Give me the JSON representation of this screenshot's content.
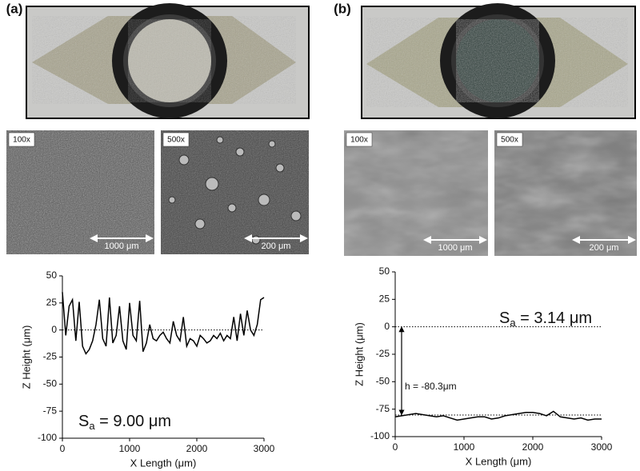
{
  "panels": [
    {
      "label": "(a)",
      "magnifications": [
        "100x",
        "500x"
      ],
      "scalebars": [
        "1000 μm",
        "200 μm"
      ]
    },
    {
      "label": "(b)",
      "magnifications": [
        "100x",
        "500x"
      ],
      "scalebars": [
        "1000 μm",
        "200 μm"
      ]
    }
  ],
  "chart_data": [
    {
      "type": "line",
      "xlabel": "X Length (μm)",
      "ylabel": "Z Height (μm)",
      "x": [
        0,
        50,
        100,
        150,
        200,
        250,
        300,
        350,
        400,
        450,
        500,
        550,
        600,
        650,
        700,
        750,
        800,
        850,
        900,
        950,
        1000,
        1050,
        1100,
        1150,
        1200,
        1250,
        1300,
        1350,
        1400,
        1450,
        1500,
        1550,
        1600,
        1650,
        1700,
        1750,
        1800,
        1850,
        1900,
        1950,
        2000,
        2050,
        2100,
        2150,
        2200,
        2250,
        2300,
        2350,
        2400,
        2450,
        2500,
        2550,
        2600,
        2650,
        2700,
        2750,
        2800,
        2850,
        2900,
        2950,
        3000
      ],
      "series": [
        {
          "color": "#000000",
          "values": [
            35,
            -5,
            22,
            28,
            -10,
            26,
            -15,
            -22,
            -18,
            -10,
            5,
            28,
            -8,
            -15,
            30,
            -12,
            -5,
            22,
            -10,
            -18,
            25,
            -5,
            -10,
            27,
            -20,
            -12,
            5,
            -8,
            -10,
            -5,
            -2,
            -8,
            -12,
            8,
            -5,
            -10,
            12,
            -15,
            -8,
            -10,
            -15,
            -5,
            -8,
            -12,
            -10,
            -5,
            -8,
            -3,
            -10,
            -5,
            -8,
            12,
            -10,
            15,
            -5,
            18,
            0,
            -5,
            5,
            28,
            30
          ]
        }
      ],
      "xlim": [
        0,
        3000
      ],
      "xticks": [
        0,
        1000,
        2000,
        3000
      ],
      "ylim": [
        -100,
        50
      ],
      "yticks": [
        -100,
        -75,
        -50,
        -25,
        0,
        25,
        50
      ],
      "reflines": [
        0
      ],
      "annotation": {
        "symbol": "S",
        "subscript": "a",
        "text": " = 9.00 μm"
      }
    },
    {
      "type": "line",
      "xlabel": "X Length (μm)",
      "ylabel": "Z Height (μm)",
      "x": [
        0,
        100,
        200,
        300,
        400,
        500,
        600,
        700,
        800,
        900,
        1000,
        1100,
        1200,
        1300,
        1400,
        1500,
        1600,
        1700,
        1800,
        1900,
        2000,
        2100,
        2200,
        2300,
        2400,
        2500,
        2600,
        2700,
        2800,
        2900,
        3000
      ],
      "series": [
        {
          "color": "#000000",
          "values": [
            -82,
            -81,
            -80,
            -79,
            -80,
            -81,
            -82,
            -81,
            -83,
            -85,
            -84,
            -83,
            -82,
            -82,
            -84,
            -83,
            -81,
            -80,
            -79,
            -78,
            -78,
            -79,
            -81,
            -77,
            -82,
            -83,
            -84,
            -83,
            -85,
            -84,
            -84
          ]
        }
      ],
      "xlim": [
        0,
        3000
      ],
      "xticks": [
        0,
        1000,
        2000,
        3000
      ],
      "ylim": [
        -100,
        50
      ],
      "yticks": [
        -100,
        -75,
        -50,
        -25,
        0,
        25,
        50
      ],
      "reflines": [
        0,
        -80.3
      ],
      "annotation": {
        "symbol": "S",
        "subscript": "a",
        "text": " = 3.14 μm"
      },
      "height_label": "h = -80.3μm"
    }
  ]
}
